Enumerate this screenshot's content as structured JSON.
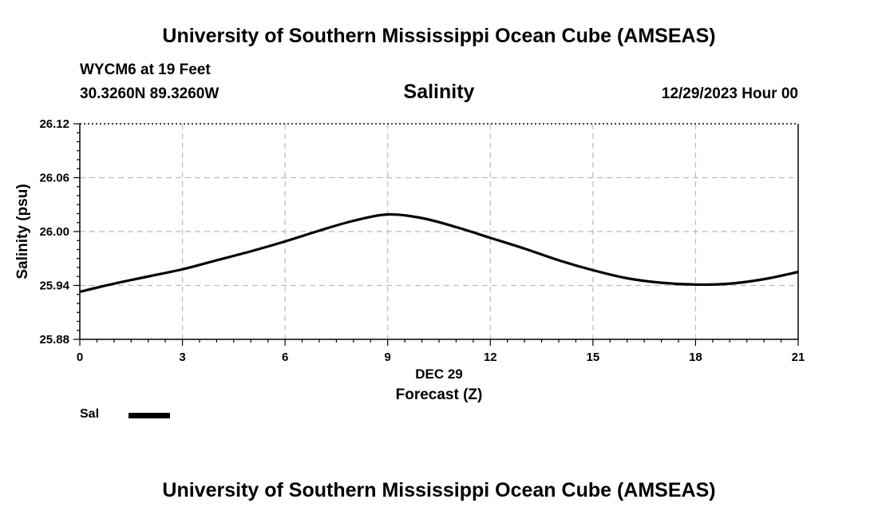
{
  "header": {
    "title": "University of Southern Mississippi Ocean Cube (AMSEAS)",
    "station": "WYCM6 at 19 Feet",
    "coords": "30.3260N  89.3260W",
    "variable": "Salinity",
    "datetime": "12/29/2023 Hour 00"
  },
  "footer": {
    "title": "University of Southern Mississippi Ocean Cube (AMSEAS)"
  },
  "legend": {
    "label": "Sal"
  },
  "chart_data": {
    "type": "line",
    "title": "Salinity",
    "xlabel": "Forecast (Z)",
    "xsublabel": "DEC 29",
    "ylabel": "Salinity (psu)",
    "xlim": [
      0,
      21
    ],
    "ylim": [
      25.88,
      26.12
    ],
    "xticks": [
      0,
      3,
      6,
      9,
      12,
      15,
      18,
      21
    ],
    "yticks": [
      "25.88",
      "25.94",
      "26.00",
      "26.06",
      "26.12"
    ],
    "grid": true,
    "series": [
      {
        "name": "Sal",
        "x": [
          0,
          1,
          2,
          3,
          4,
          5,
          6,
          7,
          8,
          9,
          10,
          11,
          12,
          13,
          14,
          15,
          16,
          17,
          18,
          19,
          20,
          21
        ],
        "values": [
          25.933,
          25.942,
          25.95,
          25.958,
          25.968,
          25.978,
          25.989,
          26.001,
          26.012,
          26.019,
          26.015,
          26.005,
          25.993,
          25.981,
          25.968,
          25.957,
          25.948,
          25.943,
          25.941,
          25.942,
          25.947,
          25.955
        ]
      }
    ]
  }
}
